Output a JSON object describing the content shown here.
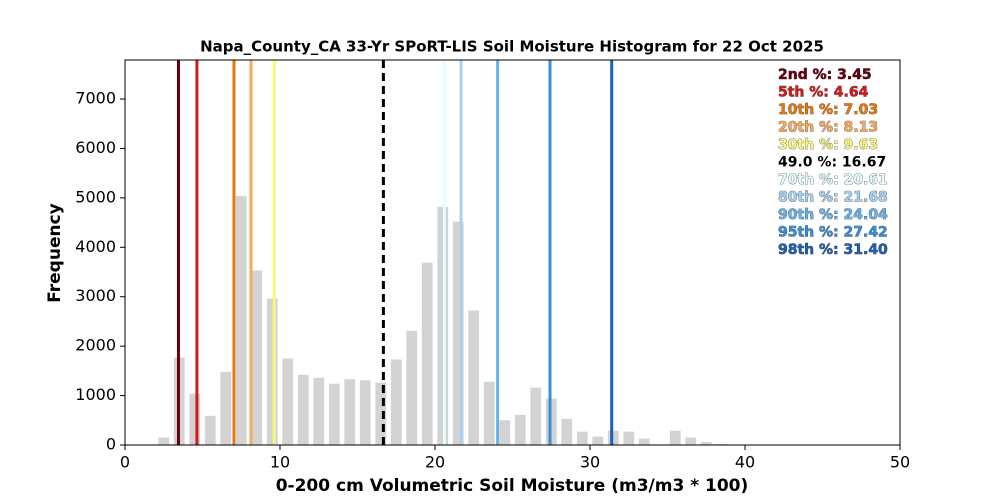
{
  "chart_data": {
    "type": "histogram",
    "title": "Napa_County_CA 33-Yr SPoRT-LIS Soil Moisture Histogram for 22 Oct 2025",
    "x_label": "0-200 cm Volumetric Soil Moisture (m3/m3 * 100)",
    "y_label": "Frequency",
    "bins": [
      2,
      3,
      4,
      5,
      6,
      7,
      8,
      9,
      10,
      11,
      12,
      13,
      14,
      15,
      16,
      17,
      18,
      19,
      20,
      21,
      22,
      23,
      24,
      25,
      26,
      27,
      28,
      29,
      30,
      31,
      32,
      33,
      34,
      35,
      36,
      37,
      38,
      39,
      40
    ],
    "values": [
      150,
      1770,
      1040,
      590,
      1480,
      5040,
      3530,
      2960,
      1750,
      1420,
      1360,
      1240,
      1330,
      1310,
      1260,
      1730,
      2310,
      3690,
      4820,
      4520,
      2720,
      1280,
      500,
      610,
      1160,
      940,
      530,
      270,
      170,
      290,
      270,
      130,
      0,
      290,
      150,
      60,
      20,
      5
    ],
    "color": "#d3d3d3",
    "xlim": [
      0,
      50
    ],
    "xticks": [
      0,
      10,
      20,
      30,
      40,
      50
    ],
    "ylim": [
      0,
      7790
    ],
    "yticks": [
      0,
      1000,
      2000,
      3000,
      4000,
      5000,
      6000,
      7000
    ],
    "percentiles": [
      {
        "label": "2nd %: 3.45",
        "value": 3.45,
        "color": "#67000d"
      },
      {
        "label": "5th %: 4.64",
        "value": 4.64,
        "color": "#d01c1c"
      },
      {
        "label": "10th %: 7.03",
        "value": 7.03,
        "color": "#e8760f"
      },
      {
        "label": "20th %: 8.13",
        "value": 8.13,
        "color": "#f8a860"
      },
      {
        "label": "30th %: 9.63",
        "value": 9.63,
        "color": "#f7f77a"
      },
      {
        "label": "49.0 %: 16.67",
        "value": 16.67,
        "color": "#000000",
        "dashed": true
      },
      {
        "label": "70th %: 20.61",
        "value": 20.61,
        "color": "#e0ffff"
      },
      {
        "label": "80th %: 21.68",
        "value": 21.68,
        "color": "#a8d0f0"
      },
      {
        "label": "90th %: 24.04",
        "value": 24.04,
        "color": "#68b0e6"
      },
      {
        "label": "95th %: 27.42",
        "value": 27.42,
        "color": "#3a8ed8"
      },
      {
        "label": "98th %: 31.40",
        "value": 31.4,
        "color": "#1f60b0"
      }
    ]
  }
}
